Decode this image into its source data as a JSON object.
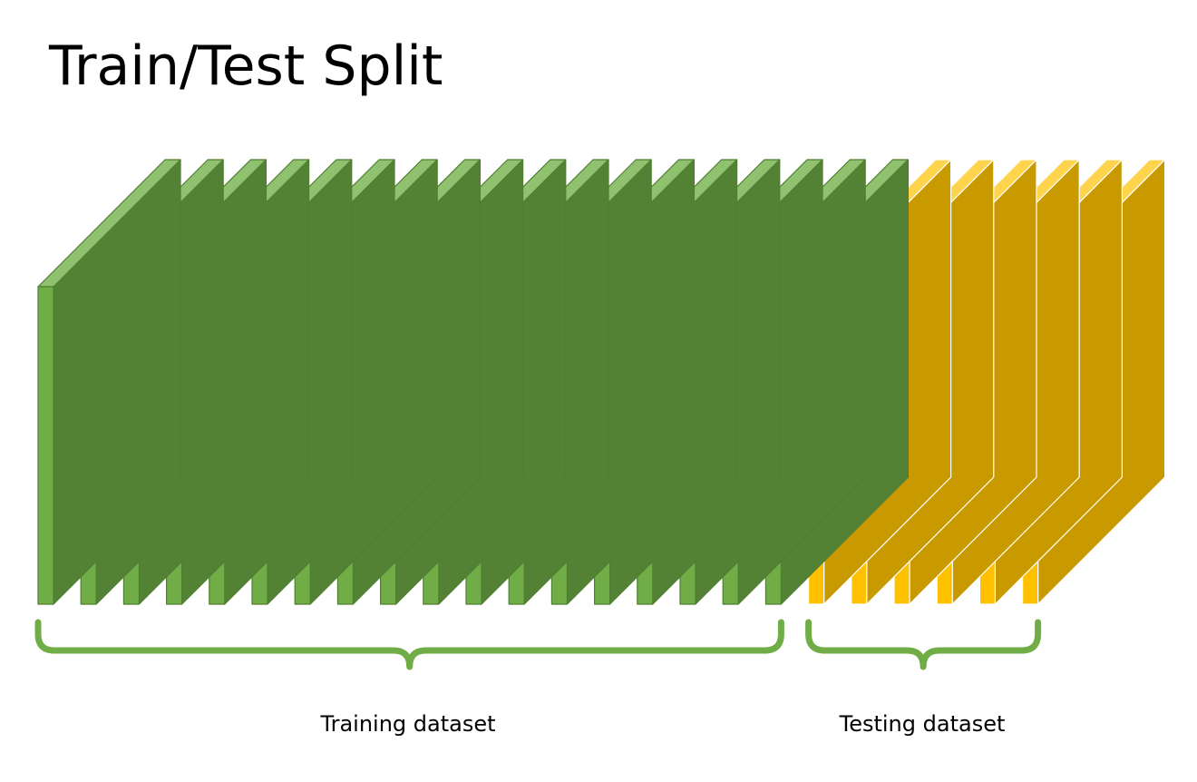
{
  "title": "Train/Test Split",
  "training": {
    "label": "Training dataset",
    "slice_count": 18
  },
  "testing": {
    "label": "Testing dataset",
    "slice_count": 6
  },
  "colors": {
    "train_front": "#70ad47",
    "train_side": "#548235",
    "train_top": "#8fc16e",
    "train_stroke": "#507e32",
    "train_brace": "#70ad47",
    "test_front": "#ffc000",
    "test_side": "#c99a00",
    "test_top": "#ffd44d",
    "test_stroke": "#ffffff",
    "test_brace": "#70ad47"
  }
}
